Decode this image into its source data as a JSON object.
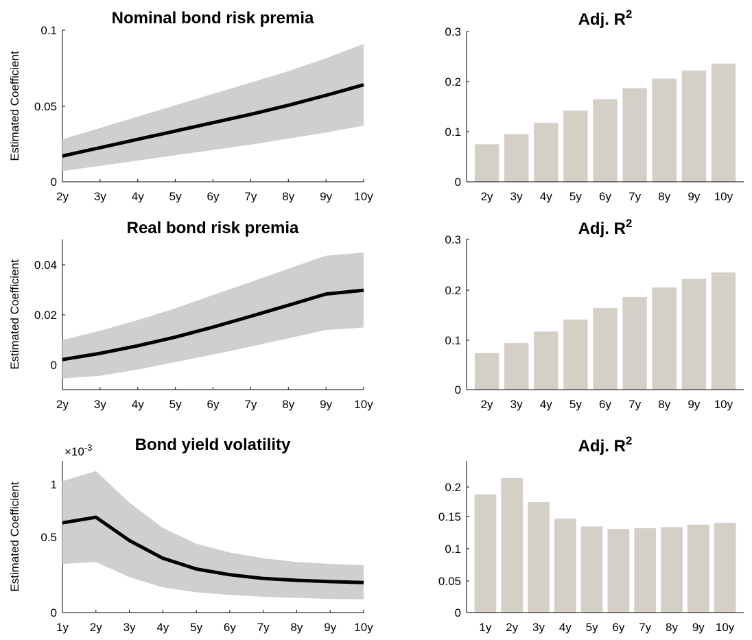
{
  "colors": {
    "line": "#000000",
    "band": "#cfcfcf",
    "bar": "#d4d0c8"
  },
  "chart_data": [
    {
      "type": "line",
      "title": "Nominal bond risk premia",
      "ylabel": "Estimated Coefficient",
      "categories": [
        "2y",
        "3y",
        "4y",
        "5y",
        "6y",
        "7y",
        "8y",
        "9y",
        "10y"
      ],
      "yticks": [
        "0",
        "0.05",
        "0.1"
      ],
      "ylim": [
        0,
        0.1
      ],
      "series": [
        {
          "role": "estimate",
          "values": [
            0.017,
            0.0225,
            0.028,
            0.0335,
            0.039,
            0.0445,
            0.0505,
            0.057,
            0.064
          ]
        },
        {
          "role": "lower",
          "values": [
            0.007,
            0.0105,
            0.014,
            0.0175,
            0.021,
            0.0245,
            0.0285,
            0.0325,
            0.037
          ]
        },
        {
          "role": "upper",
          "values": [
            0.028,
            0.0355,
            0.043,
            0.0505,
            0.058,
            0.0655,
            0.073,
            0.0815,
            0.091
          ]
        }
      ],
      "grid": false
    },
    {
      "type": "bar",
      "title_main": "Adj. R",
      "title_sup": "2",
      "categories": [
        "2y",
        "3y",
        "4y",
        "5y",
        "6y",
        "7y",
        "8y",
        "9y",
        "10y"
      ],
      "values": [
        0.075,
        0.095,
        0.118,
        0.142,
        0.165,
        0.187,
        0.206,
        0.222,
        0.236
      ],
      "yticks": [
        "0",
        "0.1",
        "0.2",
        "0.3"
      ],
      "ylim": [
        0,
        0.3
      ],
      "grid": false
    },
    {
      "type": "line",
      "title": "Real bond risk premia",
      "ylabel": "Estimated Coefficient",
      "categories": [
        "2y",
        "3y",
        "4y",
        "5y",
        "6y",
        "7y",
        "8y",
        "9y",
        "10y"
      ],
      "yticks": [
        "0",
        "0.02",
        "0.04"
      ],
      "ylim": [
        -0.01,
        0.05
      ],
      "series": [
        {
          "role": "estimate",
          "values": [
            0.002,
            0.0045,
            0.0075,
            0.011,
            0.015,
            0.0193,
            0.0237,
            0.0282,
            0.0297
          ]
        },
        {
          "role": "lower",
          "values": [
            -0.0055,
            -0.0045,
            -0.002,
            0.001,
            0.004,
            0.0072,
            0.0105,
            0.0138,
            0.0148
          ]
        },
        {
          "role": "upper",
          "values": [
            0.0098,
            0.0135,
            0.0178,
            0.0225,
            0.0278,
            0.033,
            0.0383,
            0.0435,
            0.0447
          ]
        }
      ],
      "grid": false
    },
    {
      "type": "bar",
      "title_main": "Adj. R",
      "title_sup": "2",
      "categories": [
        "2y",
        "3y",
        "4y",
        "5y",
        "6y",
        "7y",
        "8y",
        "9y",
        "10y"
      ],
      "values": [
        0.073,
        0.093,
        0.116,
        0.14,
        0.163,
        0.185,
        0.204,
        0.221,
        0.234
      ],
      "yticks": [
        "0",
        "0.1",
        "0.2",
        "0.3"
      ],
      "ylim": [
        0,
        0.3
      ],
      "grid": false
    },
    {
      "type": "line",
      "title": "Bond yield volatility",
      "ylabel": "Estimated Coefficient",
      "scale_label": "×10",
      "scale_exp": "-3",
      "categories": [
        "1y",
        "2y",
        "3y",
        "4y",
        "5y",
        "6y",
        "7y",
        "8y",
        "9y",
        "10y"
      ],
      "yticks": [
        "0",
        "0.5",
        "1"
      ],
      "ylim": [
        0,
        1.2
      ],
      "series": [
        {
          "role": "estimate",
          "values": [
            0.71,
            0.755,
            0.57,
            0.43,
            0.345,
            0.3,
            0.27,
            0.255,
            0.245,
            0.238
          ]
        },
        {
          "role": "lower",
          "values": [
            0.385,
            0.4,
            0.28,
            0.2,
            0.16,
            0.14,
            0.125,
            0.115,
            0.108,
            0.105
          ]
        },
        {
          "role": "upper",
          "values": [
            1.04,
            1.12,
            0.87,
            0.67,
            0.545,
            0.475,
            0.43,
            0.4,
            0.385,
            0.375
          ]
        }
      ],
      "grid": false
    },
    {
      "type": "bar",
      "title_main": "Adj. R",
      "title_sup": "2",
      "categories": [
        "1y",
        "2y",
        "3y",
        "4y",
        "5y",
        "6y",
        "7y",
        "8y",
        "9y",
        "10y"
      ],
      "values": [
        0.195,
        0.222,
        0.182,
        0.155,
        0.142,
        0.138,
        0.139,
        0.141,
        0.145,
        0.148
      ],
      "yticks": [
        "0",
        "0.05",
        "0.1",
        "0.15",
        "0.2"
      ],
      "ylim": [
        0,
        0.25
      ],
      "grid": false
    }
  ]
}
